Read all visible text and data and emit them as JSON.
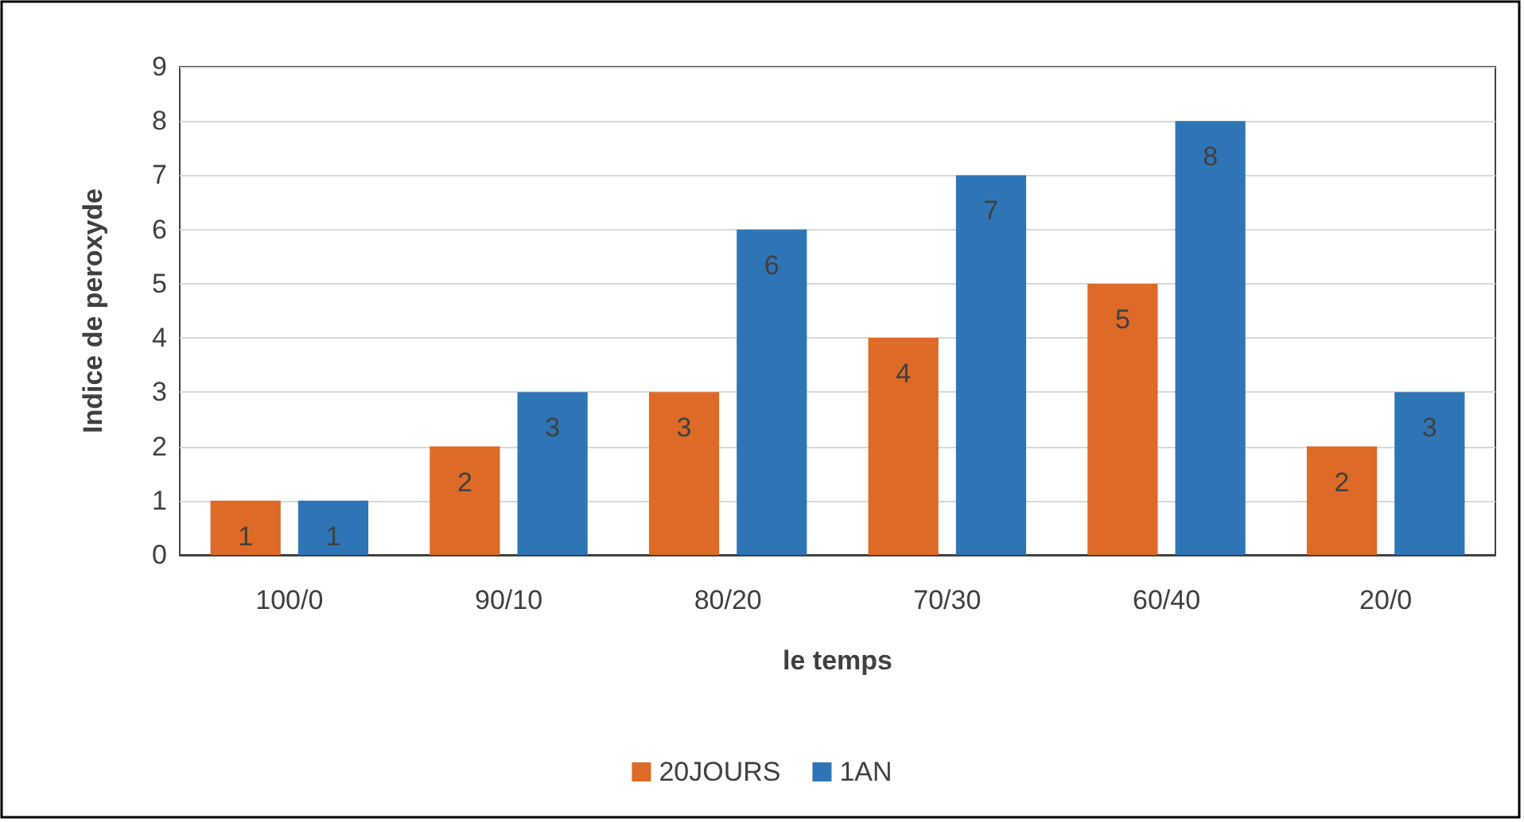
{
  "chart_data": {
    "type": "bar",
    "xlabel": "le temps",
    "ylabel": "Indice de peroxyde",
    "categories": [
      "100/0",
      "90/10",
      "80/20",
      "70/30",
      "60/40",
      "20/0"
    ],
    "series": [
      {
        "name": "20JOURS",
        "color": "#dd6a26",
        "values": [
          1,
          2,
          3,
          4,
          5,
          2
        ]
      },
      {
        "name": "1AN",
        "color": "#2e75b6",
        "values": [
          1,
          3,
          6,
          7,
          8,
          3
        ]
      }
    ],
    "ylim": [
      0,
      9
    ],
    "yticks": [
      0,
      1,
      2,
      3,
      4,
      5,
      6,
      7,
      8,
      9
    ],
    "grid": "y",
    "legend": "bottom",
    "data_labels": true
  }
}
